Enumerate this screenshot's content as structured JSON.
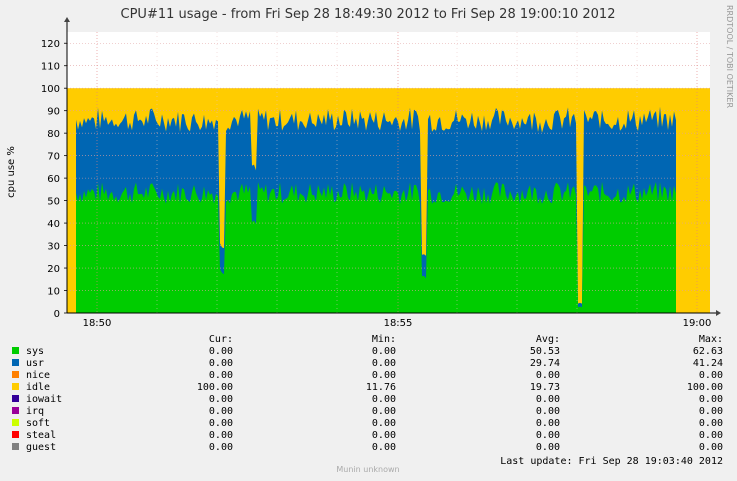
{
  "chart_data": {
    "type": "area",
    "title": "CPU#11 usage - from Fri Sep 28 18:49:30 2012 to Fri Sep 28 19:00:10 2012",
    "ylabel": "cpu use %",
    "xlabel": "",
    "ylim": [
      0,
      125
    ],
    "y_ticks": [
      "0",
      "10",
      "20",
      "30",
      "40",
      "50",
      "60",
      "70",
      "80",
      "90",
      "100",
      "110",
      "120"
    ],
    "x_ticks": [
      "18:50",
      "18:55",
      "19:00"
    ],
    "grid": true,
    "stacked": true,
    "series": [
      {
        "name": "sys",
        "color": "#00cc00",
        "typical": 50.5
      },
      {
        "name": "usr",
        "color": "#0066b3",
        "typical": 29.7
      },
      {
        "name": "nice",
        "color": "#ff8000",
        "typical": 0
      },
      {
        "name": "idle",
        "color": "#ffcc00",
        "typical": 19.7
      },
      {
        "name": "iowait",
        "color": "#330099",
        "typical": 0
      },
      {
        "name": "irq",
        "color": "#990099",
        "typical": 0
      },
      {
        "name": "soft",
        "color": "#ccff00",
        "typical": 0
      },
      {
        "name": "steal",
        "color": "#ff0000",
        "typical": 0
      },
      {
        "name": "guest",
        "color": "#808080",
        "typical": 0
      }
    ],
    "legend": {
      "headers": [
        "Cur:",
        "Min:",
        "Avg:",
        "Max:"
      ],
      "rows": [
        {
          "name": "sys",
          "color": "#00cc00",
          "cur": "0.00",
          "min": "0.00",
          "avg": "50.53",
          "max": "62.63"
        },
        {
          "name": "usr",
          "color": "#0066b3",
          "cur": "0.00",
          "min": "0.00",
          "avg": "29.74",
          "max": "41.24"
        },
        {
          "name": "nice",
          "color": "#ff8000",
          "cur": "0.00",
          "min": "0.00",
          "avg": "0.00",
          "max": "0.00"
        },
        {
          "name": "idle",
          "color": "#ffcc00",
          "cur": "100.00",
          "min": "11.76",
          "avg": "19.73",
          "max": "100.00"
        },
        {
          "name": "iowait",
          "color": "#330099",
          "cur": "0.00",
          "min": "0.00",
          "avg": "0.00",
          "max": "0.00"
        },
        {
          "name": "irq",
          "color": "#990099",
          "cur": "0.00",
          "min": "0.00",
          "avg": "0.00",
          "max": "0.00"
        },
        {
          "name": "soft",
          "color": "#ccff00",
          "cur": "0.00",
          "min": "0.00",
          "avg": "0.00",
          "max": "0.00"
        },
        {
          "name": "steal",
          "color": "#ff0000",
          "cur": "0.00",
          "min": "0.00",
          "avg": "0.00",
          "max": "0.00"
        },
        {
          "name": "guest",
          "color": "#808080",
          "cur": "0.00",
          "min": "0.00",
          "avg": "0.00",
          "max": "0.00"
        }
      ]
    },
    "last_update": "Last update:  Fri Sep 28 19:03:40 2012",
    "footer": "Munin unknown",
    "side_credit": "RRDTOOL / TOBI OETIKER"
  }
}
